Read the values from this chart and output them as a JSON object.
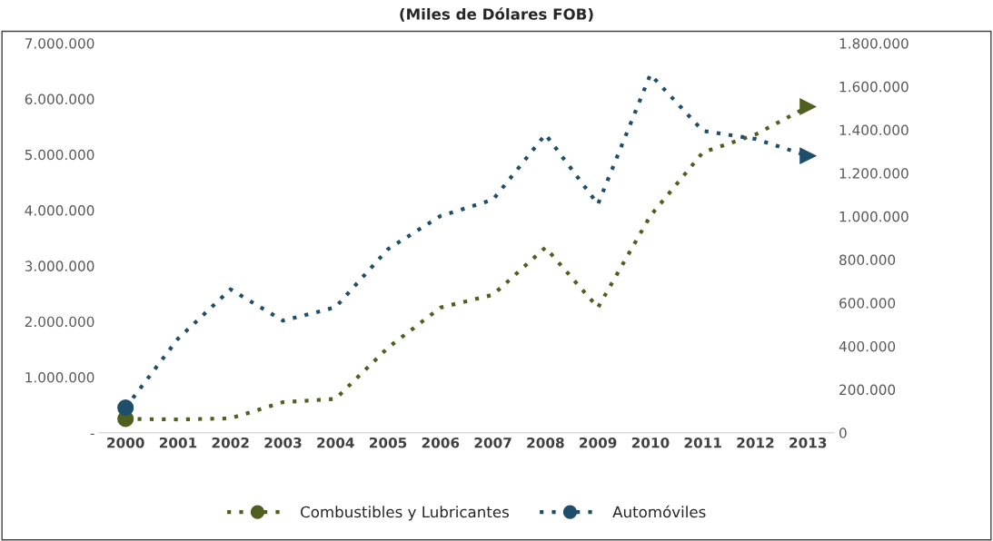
{
  "chart_data": {
    "type": "line",
    "title": "(Miles de Dólares FOB)",
    "categories": [
      "2000",
      "2001",
      "2002",
      "2003",
      "2004",
      "2005",
      "2006",
      "2007",
      "2008",
      "2009",
      "2010",
      "2011",
      "2012",
      "2013"
    ],
    "series": [
      {
        "name": "Combustibles y Lubricantes",
        "color": "#4f5f1f",
        "values": [
          250000,
          240000,
          260000,
          550000,
          610000,
          1530000,
          2250000,
          2480000,
          3330000,
          2250000,
          3900000,
          5040000,
          5360000,
          5860000
        ]
      },
      {
        "name": "Automóviles",
        "color": "#1f4e6a",
        "axis": "y2",
        "values": [
          116000,
          435000,
          663000,
          518000,
          580000,
          849000,
          1002000,
          1077000,
          1379000,
          1056000,
          1656000,
          1395000,
          1358000,
          1280000
        ]
      }
    ],
    "ylim": [
      0,
      7000000
    ],
    "yticks": [
      {
        "value": 0,
        "label": "-"
      },
      {
        "value": 1000000,
        "label": "1.000.000"
      },
      {
        "value": 2000000,
        "label": "2.000.000"
      },
      {
        "value": 3000000,
        "label": "3.000.000"
      },
      {
        "value": 4000000,
        "label": "4.000.000"
      },
      {
        "value": 5000000,
        "label": "5.000.000"
      },
      {
        "value": 6000000,
        "label": "6.000.000"
      },
      {
        "value": 7000000,
        "label": "7.000.000"
      }
    ],
    "y2lim": [
      0,
      1800000
    ],
    "y2ticks": [
      0,
      {
        "value": 200000,
        "label": "200.000"
      },
      {
        "value": 400000,
        "label": "400.000"
      },
      {
        "value": 600000,
        "label": "600.000"
      },
      {
        "value": 800000,
        "label": "800.000"
      },
      {
        "value": 1000000,
        "label": "1.000.000"
      },
      {
        "value": 1200000,
        "label": "1.200.000"
      },
      {
        "value": 1400000,
        "label": "1.400.000"
      },
      {
        "value": 1600000,
        "label": "1.600.000"
      },
      {
        "value": 1800000,
        "label": "1.800.000"
      }
    ],
    "line_style": "dotted",
    "legend": "bottom",
    "grid": false
  }
}
